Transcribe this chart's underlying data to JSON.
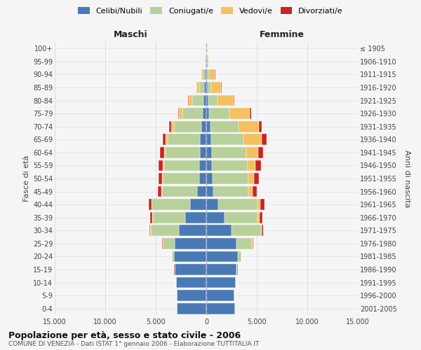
{
  "age_groups": [
    "0-4",
    "5-9",
    "10-14",
    "15-19",
    "20-24",
    "25-29",
    "30-34",
    "35-39",
    "40-44",
    "45-49",
    "50-54",
    "55-59",
    "60-64",
    "65-69",
    "70-74",
    "75-79",
    "80-84",
    "85-89",
    "90-94",
    "95-99",
    "100+"
  ],
  "birth_years": [
    "2001-2005",
    "1996-2000",
    "1991-1995",
    "1986-1990",
    "1981-1985",
    "1976-1980",
    "1971-1975",
    "1966-1970",
    "1961-1965",
    "1956-1960",
    "1951-1955",
    "1946-1950",
    "1941-1945",
    "1936-1940",
    "1931-1935",
    "1926-1930",
    "1921-1925",
    "1916-1920",
    "1911-1915",
    "1906-1910",
    "≤ 1905"
  ],
  "male_celibi": [
    2950,
    2900,
    3000,
    3100,
    3200,
    3100,
    2700,
    2100,
    1600,
    900,
    680,
    700,
    650,
    600,
    500,
    380,
    280,
    200,
    130,
    60,
    20
  ],
  "male_coniugati": [
    0,
    0,
    20,
    50,
    200,
    1200,
    2800,
    3200,
    3800,
    3500,
    3600,
    3500,
    3400,
    3200,
    2700,
    2000,
    1100,
    500,
    200,
    50,
    10
  ],
  "male_vedovi": [
    0,
    0,
    0,
    5,
    10,
    20,
    30,
    40,
    50,
    60,
    80,
    100,
    150,
    200,
    250,
    300,
    350,
    250,
    130,
    30,
    5
  ],
  "male_divorziati": [
    0,
    0,
    0,
    10,
    20,
    50,
    100,
    200,
    250,
    300,
    350,
    400,
    350,
    300,
    200,
    100,
    60,
    40,
    20,
    10,
    2
  ],
  "female_celibi": [
    2850,
    2800,
    2900,
    3000,
    3100,
    3000,
    2500,
    1800,
    1200,
    700,
    600,
    580,
    550,
    500,
    400,
    280,
    200,
    130,
    100,
    30,
    10
  ],
  "female_coniugati": [
    0,
    0,
    20,
    80,
    350,
    1500,
    2900,
    3300,
    3900,
    3500,
    3600,
    3500,
    3400,
    3200,
    2800,
    2000,
    900,
    350,
    150,
    30,
    5
  ],
  "female_vedovi": [
    0,
    0,
    5,
    10,
    20,
    50,
    100,
    180,
    250,
    350,
    500,
    800,
    1200,
    1800,
    2000,
    2000,
    1600,
    1000,
    600,
    150,
    20
  ],
  "female_divorziati": [
    0,
    0,
    0,
    10,
    30,
    80,
    150,
    300,
    400,
    450,
    500,
    550,
    500,
    500,
    300,
    150,
    80,
    50,
    25,
    10,
    2
  ],
  "colors": {
    "celibi": "#4a7ab5",
    "coniugati": "#b8d09a",
    "vedovi": "#f5c060",
    "divorziati": "#cc2222"
  },
  "title": "Popolazione per età, sesso e stato civile - 2006",
  "subtitle": "COMUNE DI VENEZIA - Dati ISTAT 1° gennaio 2006 - Elaborazione TUTTITALIA.IT",
  "xlabel_left": "Maschi",
  "xlabel_right": "Femmine",
  "ylabel": "Fasce di età",
  "ylabel_right": "Anni di nascita",
  "xlim": 15000,
  "background_color": "#f5f5f5",
  "grid_color": "#cccccc"
}
